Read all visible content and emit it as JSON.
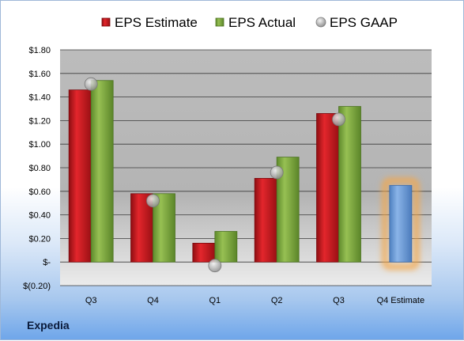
{
  "company": "Expedia",
  "chart_data": {
    "type": "bar",
    "categories": [
      "Q3",
      "Q4",
      "Q1",
      "Q2",
      "Q3",
      "Q4 Estimate"
    ],
    "series": [
      {
        "name": "EPS Estimate",
        "color": "#d41c24",
        "values": [
          1.46,
          0.58,
          0.16,
          0.71,
          1.26,
          null
        ]
      },
      {
        "name": "EPS Actual",
        "color": "#7faa3e",
        "values": [
          1.54,
          0.58,
          0.26,
          0.89,
          1.32,
          null
        ]
      },
      {
        "name": "EPS GAAP",
        "color": "#b8b8b8",
        "marker": "circle",
        "values": [
          1.51,
          0.52,
          -0.03,
          0.76,
          1.21,
          null
        ]
      }
    ],
    "estimate_bar": {
      "category": "Q4 Estimate",
      "value": 0.65,
      "color": "#6fa0dc",
      "glow_color": "#f5a748"
    },
    "ylim": [
      -0.2,
      1.8
    ],
    "yticks": [
      {
        "value": 1.8,
        "label": "$1.80"
      },
      {
        "value": 1.6,
        "label": "$1.60"
      },
      {
        "value": 1.4,
        "label": "$1.40"
      },
      {
        "value": 1.2,
        "label": "$1.20"
      },
      {
        "value": 1.0,
        "label": "$1.00"
      },
      {
        "value": 0.8,
        "label": "$0.80"
      },
      {
        "value": 0.6,
        "label": "$0.60"
      },
      {
        "value": 0.4,
        "label": "$0.40"
      },
      {
        "value": 0.2,
        "label": "$0.20"
      },
      {
        "value": 0.0,
        "label": "$-"
      },
      {
        "value": -0.2,
        "label": "$(0.20)"
      }
    ],
    "grid": true,
    "legend_position": "top"
  }
}
